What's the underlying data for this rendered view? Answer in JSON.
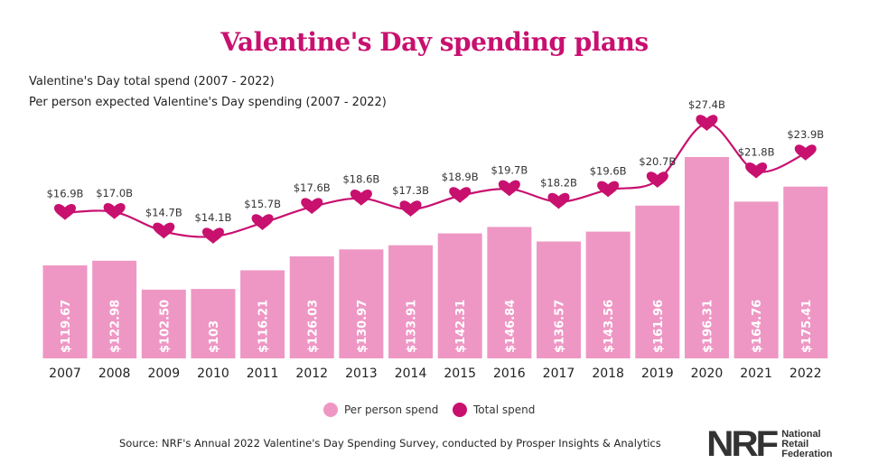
{
  "chart_data": {
    "type": "bar+line",
    "title": "Valentine's Day spending plans",
    "subtitles": [
      "Valentine's Day total spend (2007 - 2022)",
      "Per person expected Valentine's Day spending (2007 - 2022)"
    ],
    "categories": [
      "2007",
      "2008",
      "2009",
      "2010",
      "2011",
      "2012",
      "2013",
      "2014",
      "2015",
      "2016",
      "2017",
      "2018",
      "2019",
      "2020",
      "2021",
      "2022"
    ],
    "series": [
      {
        "name": "Per person spend",
        "type": "bar",
        "color": "#ee97c4",
        "values": [
          119.67,
          122.98,
          102.5,
          103,
          116.21,
          126.03,
          130.97,
          133.91,
          142.31,
          146.84,
          136.57,
          143.56,
          161.96,
          196.31,
          164.76,
          175.41
        ],
        "labels": [
          "$119.67",
          "$122.98",
          "$102.50",
          "$103",
          "$116.21",
          "$126.03",
          "$130.97",
          "$133.91",
          "$142.31",
          "$146.84",
          "$136.57",
          "$143.56",
          "$161.96",
          "$196.31",
          "$164.76",
          "$175.41"
        ]
      },
      {
        "name": "Total spend",
        "type": "line",
        "color": "#c8106f",
        "values": [
          16.9,
          17.0,
          14.7,
          14.1,
          15.7,
          17.6,
          18.6,
          17.3,
          18.9,
          19.7,
          18.2,
          19.6,
          20.7,
          27.4,
          21.8,
          23.9
        ],
        "labels": [
          "$16.9B",
          "$17.0B",
          "$14.7B",
          "$14.1B",
          "$15.7B",
          "$17.6B",
          "$18.6B",
          "$17.3B",
          "$18.9B",
          "$19.7B",
          "$18.2B",
          "$19.6B",
          "$20.7B",
          "$27.4B",
          "$21.8B",
          "$23.9B"
        ]
      }
    ],
    "legend": [
      "Per person spend",
      "Total spend"
    ],
    "legend_position": "bottom",
    "grid": false
  },
  "source": "Source: NRF's Annual 2022 Valentine's Day Spending Survey, conducted by Prosper Insights & Analytics",
  "logo": {
    "mark": "NRF",
    "lines": [
      "National",
      "Retail",
      "Federation"
    ]
  }
}
